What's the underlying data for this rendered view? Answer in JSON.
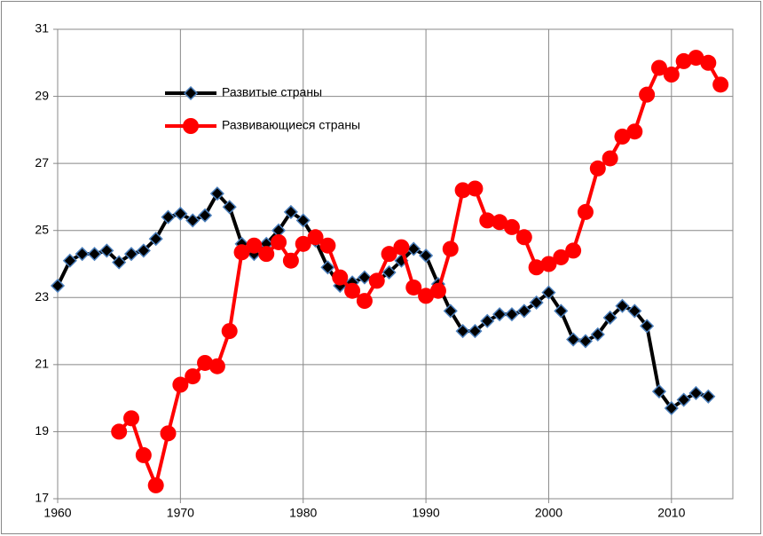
{
  "chart_data": {
    "type": "line",
    "x": [
      1960,
      1961,
      1962,
      1963,
      1964,
      1965,
      1966,
      1967,
      1968,
      1969,
      1970,
      1971,
      1972,
      1973,
      1974,
      1975,
      1976,
      1977,
      1978,
      1979,
      1980,
      1981,
      1982,
      1983,
      1984,
      1985,
      1986,
      1987,
      1988,
      1989,
      1990,
      1991,
      1992,
      1993,
      1994,
      1995,
      1996,
      1997,
      1998,
      1999,
      2000,
      2001,
      2002,
      2003,
      2004,
      2005,
      2006,
      2007,
      2008,
      2009,
      2010,
      2011,
      2012,
      2013,
      2014
    ],
    "series": [
      {
        "name": "Развитые страны",
        "color": "#000000",
        "marker": "diamond",
        "marker_edge": "#4a7ebb",
        "values": [
          23.35,
          24.1,
          24.3,
          24.3,
          24.4,
          24.05,
          24.3,
          24.4,
          24.75,
          25.4,
          25.5,
          25.3,
          25.45,
          26.1,
          25.7,
          24.6,
          24.3,
          24.6,
          25.0,
          25.55,
          25.3,
          24.7,
          23.9,
          23.35,
          23.45,
          23.6,
          23.5,
          23.75,
          24.1,
          24.45,
          24.25,
          23.4,
          22.6,
          22.0,
          22.0,
          22.3,
          22.5,
          22.5,
          22.6,
          22.85,
          23.15,
          22.6,
          21.75,
          21.7,
          21.9,
          22.4,
          22.75,
          22.6,
          22.15,
          20.2,
          19.7,
          19.95,
          20.15,
          20.05,
          null
        ]
      },
      {
        "name": "Развивающиеся страны",
        "color": "#ff0000",
        "marker": "circle",
        "values": [
          null,
          null,
          null,
          null,
          null,
          19.0,
          19.4,
          18.3,
          17.4,
          18.95,
          20.4,
          20.65,
          21.05,
          20.95,
          22.0,
          24.35,
          24.55,
          24.3,
          24.65,
          24.1,
          24.6,
          24.8,
          24.55,
          23.6,
          23.2,
          22.9,
          23.5,
          24.3,
          24.5,
          23.3,
          23.05,
          23.2,
          24.45,
          26.2,
          26.25,
          25.3,
          25.25,
          25.1,
          24.8,
          23.9,
          24.0,
          24.2,
          24.4,
          25.55,
          26.85,
          27.15,
          27.8,
          27.95,
          29.05,
          29.85,
          29.65,
          30.05,
          30.15,
          30.0,
          29.35
        ]
      }
    ],
    "xlim": [
      1960,
      2015
    ],
    "xticks": [
      1960,
      1970,
      1980,
      1990,
      2000,
      2010
    ],
    "ylim": [
      17,
      31
    ],
    "yticks": [
      17,
      19,
      21,
      23,
      25,
      27,
      29,
      31
    ],
    "grid": true
  }
}
